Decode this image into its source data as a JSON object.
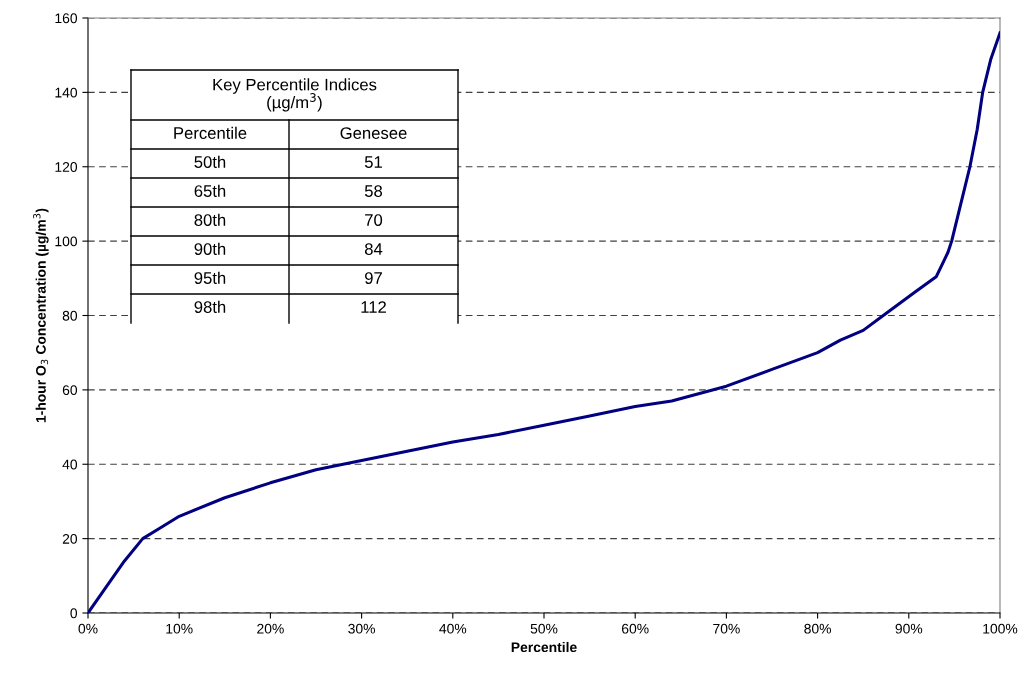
{
  "chart_data": {
    "type": "line",
    "xlabel": "Percentile",
    "ylabel": "1-hour O$_{3}$ Concentration (µg/m$^{3}$)",
    "x": [
      0,
      2,
      4,
      6,
      8,
      10,
      15,
      20,
      25,
      30,
      35,
      40,
      45,
      50,
      55,
      60,
      64,
      70,
      75,
      80,
      82.5,
      85,
      87.2,
      90.5,
      93,
      94.3,
      94.7,
      95.5,
      96.7,
      97.5,
      98.1,
      99,
      100
    ],
    "series": [
      {
        "color": "#000080",
        "values": [
          0,
          7,
          14,
          20,
          23,
          26,
          31,
          35,
          38.5,
          41,
          43.5,
          46,
          48,
          50.5,
          53,
          55.5,
          57,
          61,
          65.5,
          70,
          73.4,
          76,
          80,
          86,
          90.4,
          97,
          100,
          108,
          120,
          130,
          140,
          149,
          156
        ]
      }
    ],
    "xlim": [
      0,
      100
    ],
    "xticks": [
      {
        "value": 0,
        "label": "0%"
      },
      {
        "value": 10,
        "label": "10%"
      },
      {
        "value": 20,
        "label": "20%"
      },
      {
        "value": 30,
        "label": "30%"
      },
      {
        "value": 40,
        "label": "40%"
      },
      {
        "value": 50,
        "label": "50%"
      },
      {
        "value": 60,
        "label": "60%"
      },
      {
        "value": 70,
        "label": "70%"
      },
      {
        "value": 80,
        "label": "80%"
      },
      {
        "value": 90,
        "label": "90%"
      },
      {
        "value": 100,
        "label": "100%"
      }
    ],
    "ylim": [
      0,
      160
    ],
    "yticks": [
      0,
      20,
      40,
      60,
      80,
      100,
      120,
      140,
      160
    ],
    "grid": "y",
    "marker": "none",
    "line_style": "solid",
    "annotations": [
      "Key Percentile Indices\n(µg/m$^{3}$)",
      "Percentile",
      "Genesee",
      "50th",
      "51",
      "65th",
      "58",
      "80th",
      "70",
      "90th",
      "84",
      "95th",
      "97",
      "98th",
      "112"
    ]
  }
}
